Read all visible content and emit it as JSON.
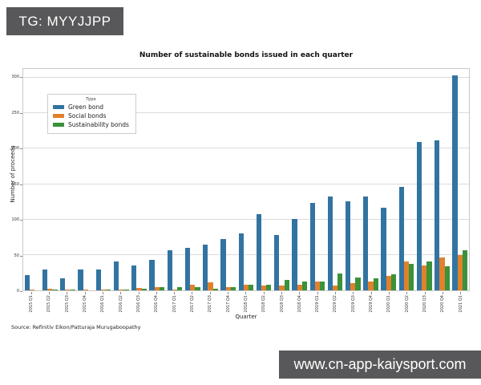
{
  "overlays": {
    "tg_badge": "TG: MYYJJPP",
    "site_badge": "www.cn-app-kaiysport.com"
  },
  "chart_data": {
    "type": "bar",
    "title": "Number of sustainable bonds issued in each quarter",
    "xlabel": "Quarter",
    "ylabel": "Number of proceeds",
    "legend_title": "Type",
    "legend_position": "upper left",
    "grid": true,
    "ylim": [
      0,
      312
    ],
    "yticks": [
      0,
      50,
      100,
      150,
      200,
      250,
      300
    ],
    "categories": [
      "2015 Q1",
      "2015 Q2",
      "2015 Q3",
      "2015 Q4",
      "2016 Q1",
      "2016 Q2",
      "2016 Q3",
      "2016 Q4",
      "2017 Q1",
      "2017 Q2",
      "2017 Q3",
      "2017 Q4",
      "2018 Q1",
      "2018 Q2",
      "2018 Q3",
      "2018 Q4",
      "2019 Q1",
      "2019 Q2",
      "2019 Q3",
      "2019 Q4",
      "2020 Q1",
      "2020 Q2",
      "2020 Q3",
      "2020 Q4",
      "2021 Q1"
    ],
    "series": [
      {
        "name": "Green bond",
        "color": "#3274a1",
        "values": [
          21,
          30,
          17,
          29,
          29,
          41,
          35,
          43,
          57,
          60,
          65,
          73,
          80,
          108,
          78,
          101,
          123,
          132,
          126,
          133,
          117,
          146,
          209,
          212,
          303
        ]
      },
      {
        "name": "Social bonds",
        "color": "#e1812c",
        "values": [
          1,
          2,
          1,
          1,
          1,
          1,
          3,
          5,
          1,
          8,
          11,
          4,
          8,
          7,
          7,
          8,
          12,
          7,
          10,
          12,
          20,
          41,
          35,
          47,
          50
        ]
      },
      {
        "name": "Sustainability bonds",
        "color": "#3a923a",
        "values": [
          0,
          1,
          1,
          0,
          1,
          1,
          2,
          5,
          5,
          4,
          2,
          5,
          8,
          8,
          15,
          12,
          13,
          24,
          18,
          17,
          23,
          37,
          41,
          34,
          57
        ]
      }
    ],
    "source_note": "Source: Refinitiv Eikon/Patturaja Murugaboopathy"
  }
}
